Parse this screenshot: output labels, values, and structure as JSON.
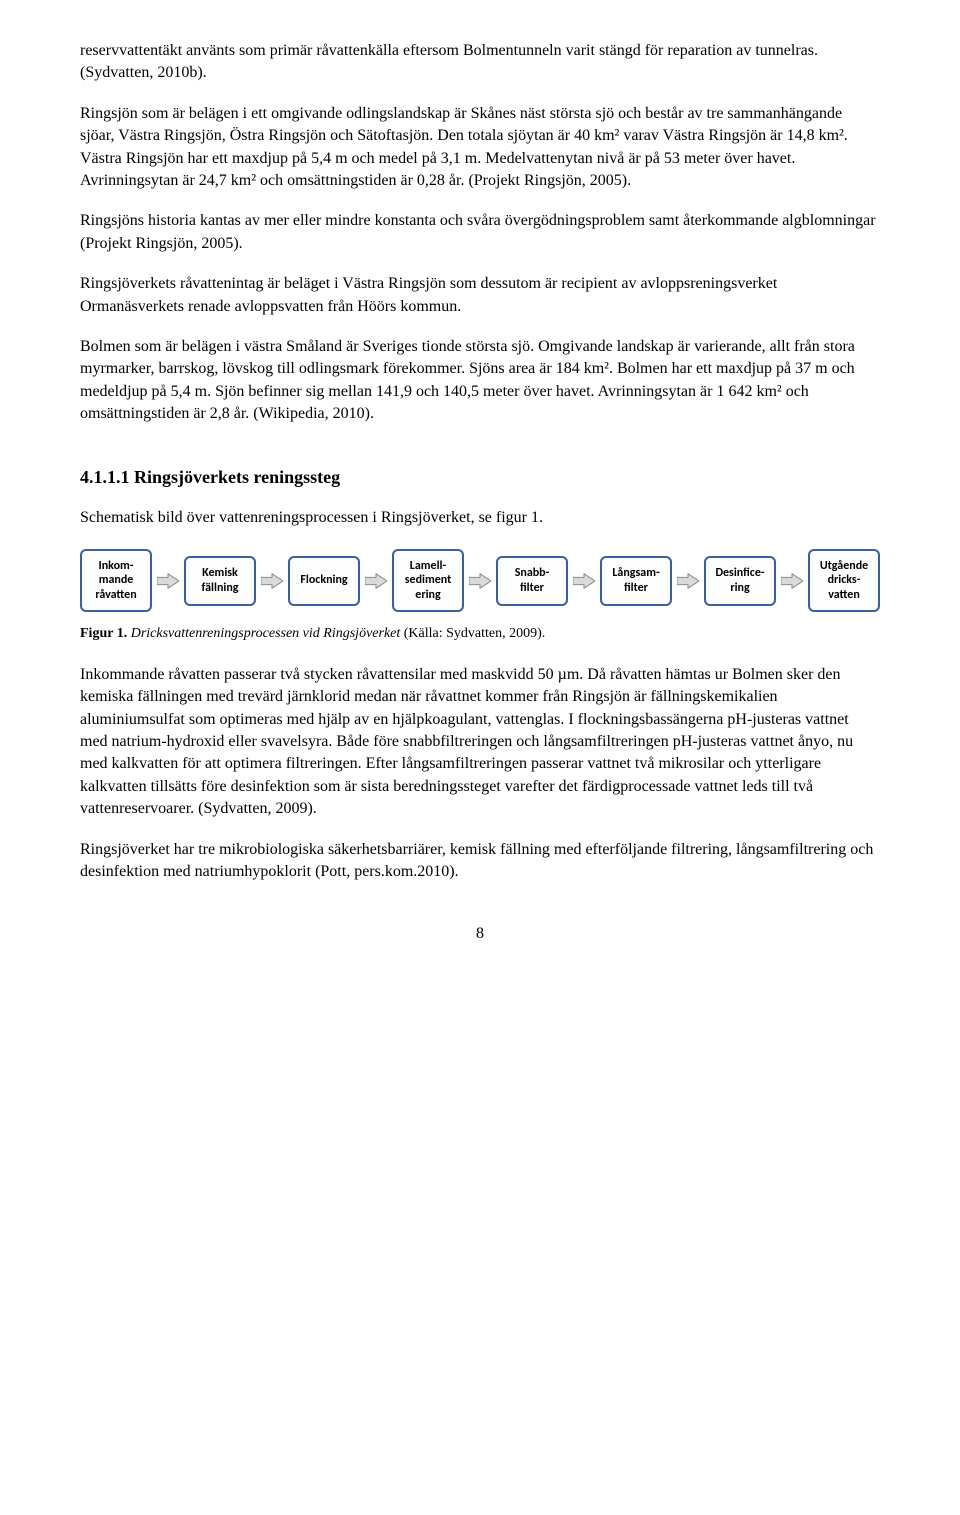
{
  "paragraphs": {
    "p1": "reservvattentäkt använts som primär råvattenkälla eftersom Bolmentunneln varit stängd för reparation av tunnelras. (Sydvatten, 2010b).",
    "p2": "Ringsjön som är belägen i ett omgivande odlingslandskap är Skånes näst största sjö och består av tre sammanhängande sjöar, Västra Ringsjön, Östra Ringsjön och Sätoftasjön. Den totala sjöytan är 40 km² varav Västra Ringsjön är 14,8 km². Västra Ringsjön har ett maxdjup på 5,4 m och medel på 3,1 m. Medelvattenytan nivå är på 53 meter över havet. Avrinningsytan är 24,7 km² och omsättningstiden är 0,28 år. (Projekt Ringsjön, 2005).",
    "p3": "Ringsjöns historia kantas av mer eller mindre konstanta och svåra övergödningsproblem samt återkommande algblomningar (Projekt Ringsjön, 2005).",
    "p4": "Ringsjöverkets råvattenintag är beläget i Västra Ringsjön som dessutom är recipient av avloppsreningsverket Ormanäsverkets renade avloppsvatten från Höörs kommun.",
    "p5": "Bolmen som är belägen i västra Småland är Sveriges tionde största sjö. Omgivande landskap är varierande, allt från stora myrmarker, barrskog, lövskog till odlingsmark förekommer. Sjöns area är 184 km². Bolmen har ett maxdjup på 37 m och medeldjup på 5,4 m. Sjön befinner sig mellan 141,9 och 140,5 meter över havet. Avrinningsytan är 1 642 km² och omsättningstiden är 2,8 år. (Wikipedia, 2010).",
    "p6": "Schematisk bild över vattenreningsprocessen i Ringsjöverket, se figur 1.",
    "p7": "Inkommande råvatten passerar två stycken råvattensilar med maskvidd 50 µm. Då råvatten hämtas ur Bolmen sker den kemiska fällningen med trevärd järnklorid medan när råvattnet kommer från Ringsjön är fällningskemikalien aluminiumsulfat som optimeras med hjälp av en hjälpkoagulant, vattenglas. I flockningsbassängerna pH-justeras vattnet med natrium-hydroxid eller svavelsyra. Både före snabbfiltreringen och långsamfiltreringen pH-justeras vattnet ånyo, nu med kalkvatten för att optimera filtreringen. Efter långsamfiltreringen passerar vattnet två mikrosilar och ytterligare kalkvatten tillsätts före desinfektion som är sista beredningssteget varefter det färdigprocessade vattnet leds till två vattenreservoarer. (Sydvatten, 2009).",
    "p8": "Ringsjöverket har tre mikrobiologiska säkerhetsbarriärer, kemisk fällning med efterföljande filtrering, långsamfiltrering och desinfektion med natriumhypoklorit (Pott, pers.kom.2010)."
  },
  "section_heading": "4.1.1.1 Ringsjöverkets reningssteg",
  "flowchart": {
    "boxes": [
      "Inkom-\nmande\nråvatten",
      "Kemisk\nfällning",
      "Flockning",
      "Lamell-\nsediment\nering",
      "Snabb-\nfilter",
      "Långsam-\nfilter",
      "Desinfice-\nring",
      "Utgående\ndricks-\nvatten"
    ],
    "box_border_color": "#3a5fa0",
    "box_bg_color": "#fdfdfd",
    "arrow_fill": "#d9d9d9",
    "arrow_stroke": "#7f7f7f"
  },
  "figure_caption": {
    "label": "Figur 1.",
    "italic_text": " Dricksvattenreningsprocessen vid Ringsjöverket ",
    "source": "(Källa: Sydvatten, 2009)."
  },
  "page_number": "8"
}
